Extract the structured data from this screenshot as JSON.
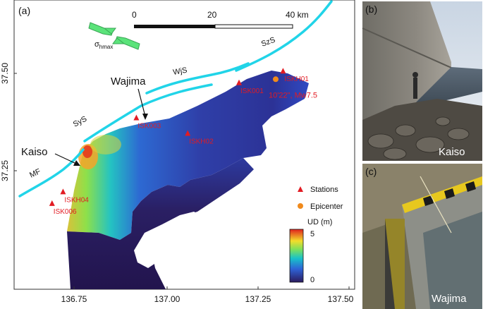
{
  "panel_a": {
    "label": "(a)",
    "scale_bar": {
      "ticks": [
        "0",
        "20",
        "40 km"
      ]
    },
    "stress": {
      "symbol": "σ",
      "subscript": "hmax"
    },
    "fault_labels": [
      "SzS",
      "WjS",
      "SyS",
      "MF"
    ],
    "place_labels": {
      "wajima": "Wajima",
      "kaiso": "Kaiso"
    },
    "stations": [
      {
        "name": "ISKH01",
        "lon": 137.32,
        "lat": 37.505
      },
      {
        "name": "ISK001",
        "lon": 137.2,
        "lat": 37.475
      },
      {
        "name": "ISK003",
        "lon": 136.92,
        "lat": 37.385
      },
      {
        "name": "ISKH02",
        "lon": 137.06,
        "lat": 37.345
      },
      {
        "name": "ISKH04",
        "lon": 136.72,
        "lat": 37.195
      },
      {
        "name": "ISK006",
        "lon": 136.69,
        "lat": 37.165
      }
    ],
    "epicenter": {
      "lon": 137.3,
      "lat": 37.485,
      "label": "10'22\", Mw7.5"
    },
    "legend": {
      "stations": "Stations",
      "epicenter": "Epicenter"
    },
    "colorbar": {
      "title": "UD (m)",
      "max": "5",
      "min": "0"
    },
    "x_ticks": [
      "136.75",
      "137.00",
      "137.25",
      "137.50"
    ],
    "y_ticks": [
      "37.50",
      "37.25"
    ],
    "colors": {
      "fault": "#21d4e8",
      "station": "#e21b23",
      "epicenter": "#f08a1c",
      "arrow": "#5be37a"
    }
  },
  "panel_b": {
    "label": "(b)",
    "caption": "Kaiso"
  },
  "panel_c": {
    "label": "(c)",
    "caption": "Wajima"
  }
}
